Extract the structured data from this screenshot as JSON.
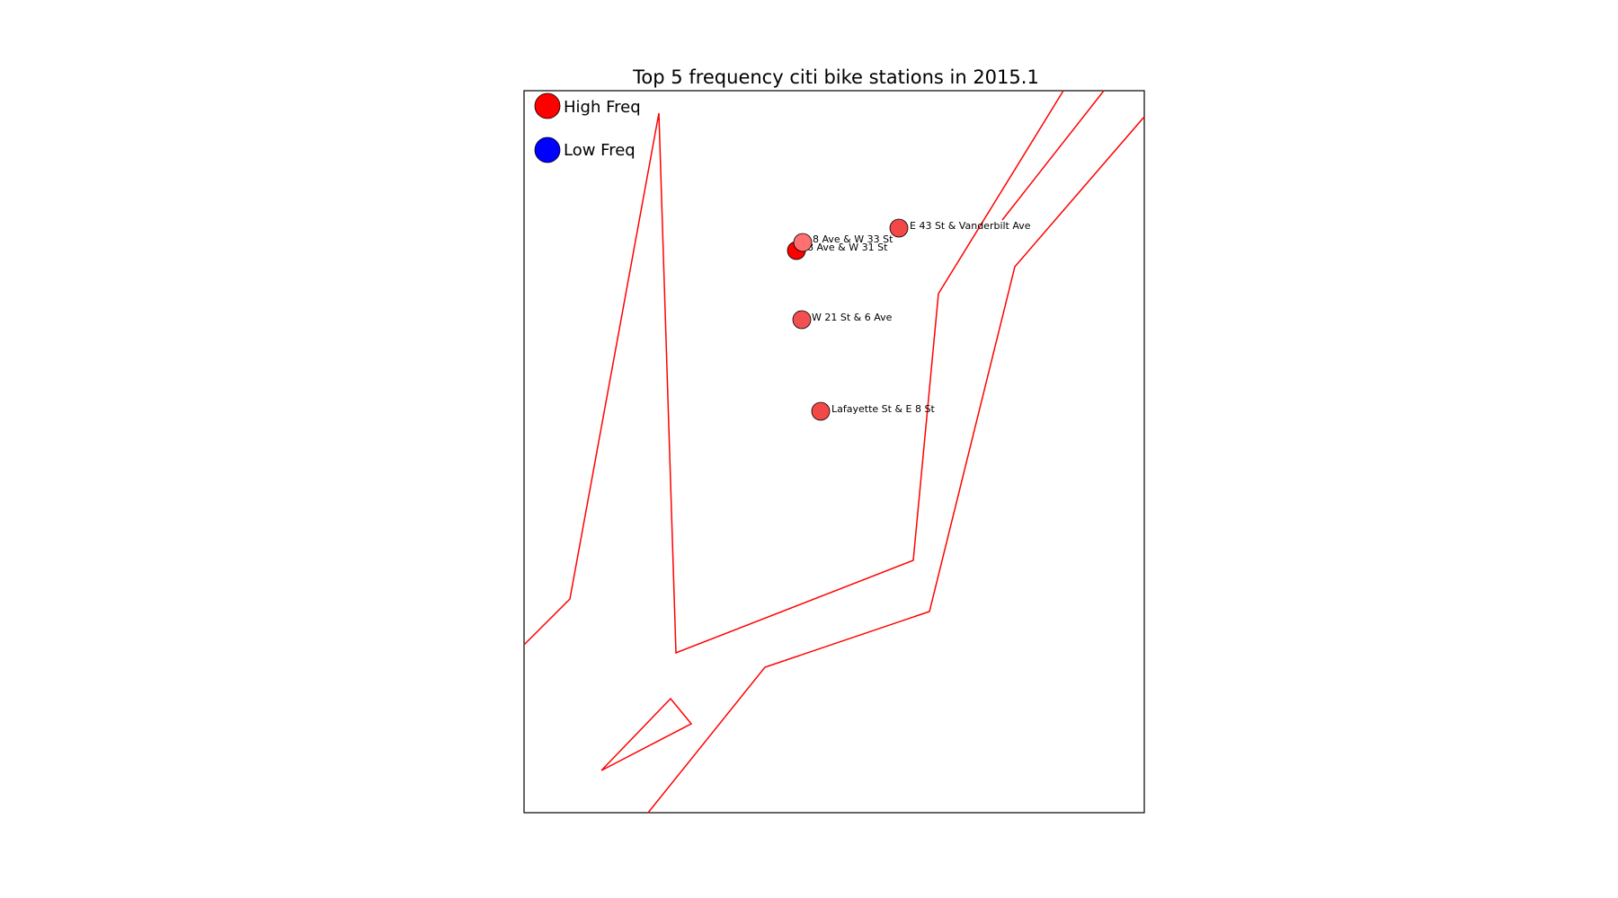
{
  "chart_data": {
    "type": "scatter",
    "title": "Top 5 frequency citi bike stations in 2015.1",
    "legend": {
      "placement": "top-left",
      "entries": [
        {
          "label": "High Freq",
          "color": "#ff0000"
        },
        {
          "label": "Low Freq",
          "color": "#0000ff"
        }
      ]
    },
    "stations": [
      {
        "name": "8 Ave & W 31 St",
        "color": "#ff0000"
      },
      {
        "name": "8 Ave & W 33 St",
        "color": "#ff7070"
      },
      {
        "name": "E 43 St & Vanderbilt Ave",
        "color": "#f24848"
      },
      {
        "name": "W 21 St & 6 Ave",
        "color": "#f25050"
      },
      {
        "name": "Lafayette St & E 8 St",
        "color": "#f24848"
      }
    ],
    "boundary_color": "#ff0000",
    "grid": false
  }
}
